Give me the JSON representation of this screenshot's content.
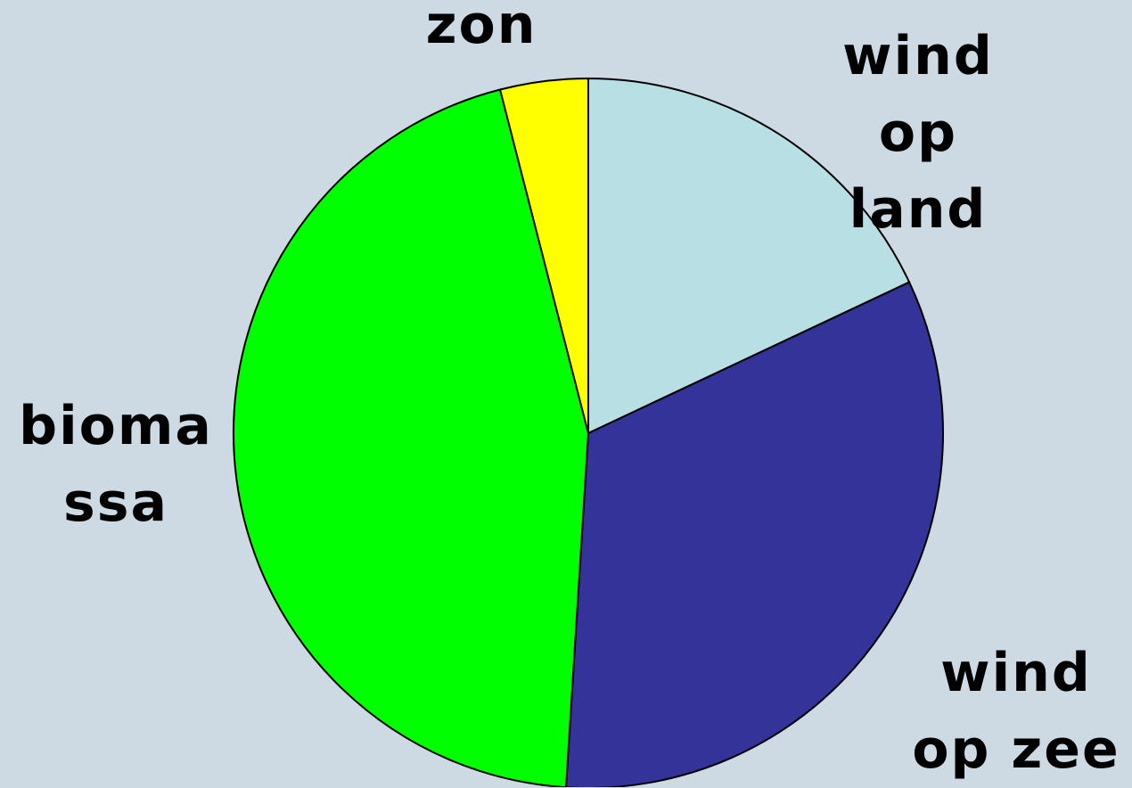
{
  "chart_data": {
    "type": "pie",
    "categories": [
      "wind op land",
      "wind op zee",
      "biomassa",
      "zon"
    ],
    "values": [
      18,
      33,
      45,
      4
    ],
    "colors": [
      "#b8e0e4",
      "#333399",
      "#00ff00",
      "#ffff00"
    ]
  }
}
